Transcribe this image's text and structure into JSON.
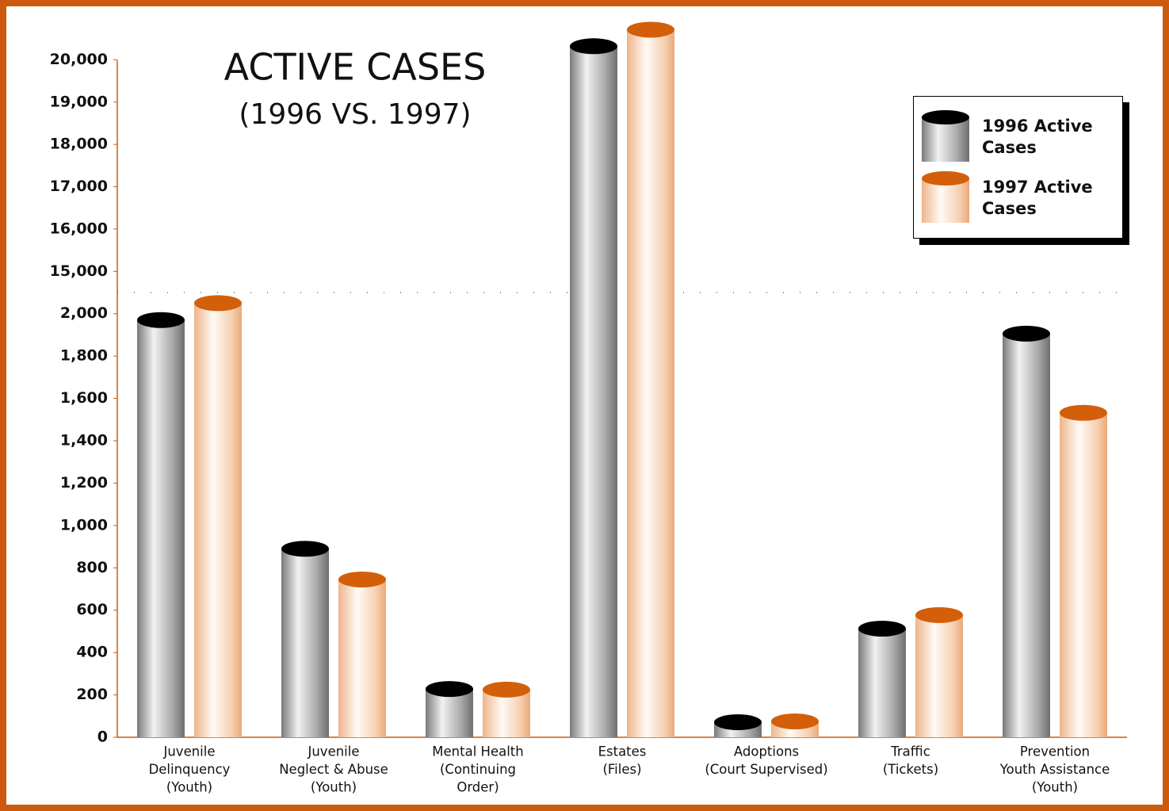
{
  "chart_data": {
    "type": "bar",
    "title": "ACTIVE CASES",
    "subtitle": "(1996 VS. 1997)",
    "categories": [
      [
        "Juvenile",
        "Delinquency",
        "(Youth)"
      ],
      [
        "Juvenile",
        "Neglect & Abuse",
        "(Youth)"
      ],
      [
        "Mental Health",
        "(Continuing",
        "Order)"
      ],
      [
        "Estates",
        "(Files)"
      ],
      [
        "Adoptions",
        "(Court Supervised)"
      ],
      [
        "Traffic",
        "(Tickets)"
      ],
      [
        "Prevention",
        "Youth Assistance",
        "(Youth)"
      ]
    ],
    "series": [
      {
        "name": "1996 Active Cases",
        "color": "#000000",
        "values": [
          1970,
          890,
          228,
          20320,
          71,
          513,
          1906
        ]
      },
      {
        "name": "1997 Active Cases",
        "color": "#d35f0a",
        "values": [
          2050,
          745,
          225,
          20710,
          75,
          577,
          1532
        ]
      }
    ],
    "axis_break": {
      "lower": {
        "ylim": [
          0,
          2100
        ],
        "yticks": [
          0,
          200,
          400,
          600,
          800,
          {
            "value": 1000,
            "label": "1,000"
          },
          {
            "value": 1200,
            "label": "1,200"
          },
          {
            "value": 1400,
            "label": "1,400"
          },
          {
            "value": 1600,
            "label": "1,600"
          },
          {
            "value": 1800,
            "label": "1,800"
          },
          {
            "value": 2000,
            "label": "2,000"
          }
        ]
      },
      "upper": {
        "ylim": [
          14500,
          21000
        ],
        "yticks": [
          {
            "value": 15000,
            "label": "15,000"
          },
          {
            "value": 16000,
            "label": "16,000"
          },
          {
            "value": 17000,
            "label": "17,000"
          },
          {
            "value": 18000,
            "label": "18,000"
          },
          {
            "value": 19000,
            "label": "19,000"
          },
          {
            "value": 20000,
            "label": "20,000"
          }
        ]
      }
    },
    "legend": "upper right"
  }
}
